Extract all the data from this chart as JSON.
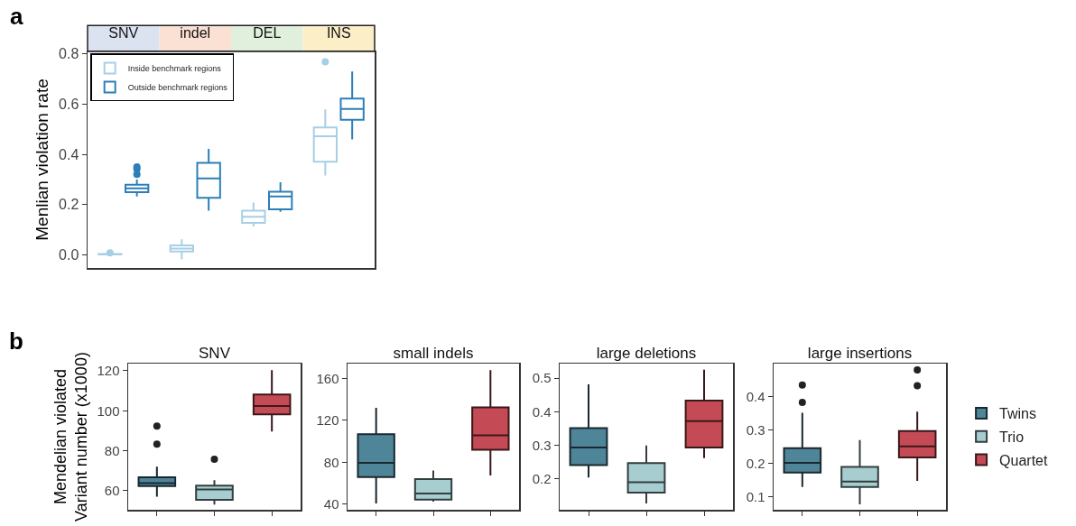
{
  "chart_data": [
    {
      "type": "box",
      "ylabel": "Menlian violation rate",
      "annotations": [
        "a"
      ],
      "categories": [
        "SNV",
        "indel",
        "DEL",
        "INS"
      ],
      "ylim": [
        -0.053,
        0.81
      ],
      "yticks": [
        {
          "value": 0,
          "label": "0.0"
        },
        0.2,
        0.4,
        0.6,
        0.8
      ],
      "grid": false,
      "legend": "top left",
      "series": [
        {
          "name": "Inside benchmark regions",
          "color": "#a6cfe5",
          "boxes": [
            {
              "low": 0,
              "q1": 0.001,
              "median": 0.002,
              "q3": 0.003,
              "high": 0.004,
              "outliers": [
                0.007
              ]
            },
            {
              "low": -0.019,
              "q1": 0.013,
              "median": 0.024,
              "q3": 0.037,
              "high": 0.061
            },
            {
              "low": 0.112,
              "q1": 0.127,
              "median": 0.151,
              "q3": 0.175,
              "high": 0.208
            },
            {
              "low": 0.316,
              "q1": 0.37,
              "median": 0.472,
              "q3": 0.507,
              "high": 0.579,
              "outliers": [
                0.769
              ]
            }
          ]
        },
        {
          "name": "Outside benchmark regions",
          "color": "#2c7fb8",
          "boxes": [
            {
              "low": 0.232,
              "q1": 0.249,
              "median": 0.264,
              "q3": 0.279,
              "high": 0.299,
              "outliers": [
                0.32,
                0.342,
                0.35
              ]
            },
            {
              "low": 0.175,
              "q1": 0.227,
              "median": 0.304,
              "q3": 0.366,
              "high": 0.422
            },
            {
              "low": 0.171,
              "q1": 0.181,
              "median": 0.232,
              "q3": 0.251,
              "high": 0.289
            },
            {
              "low": 0.459,
              "q1": 0.538,
              "median": 0.581,
              "q3": 0.622,
              "high": 0.73
            }
          ]
        }
      ]
    },
    {
      "type": "box",
      "title": "SNV",
      "ylabel": "Mendelian violated\nVariant number (x1000)",
      "annotations": [
        "b"
      ],
      "categories": [
        null,
        null,
        null
      ],
      "ylim": [
        50.5,
        123.6
      ],
      "yticks": [
        60,
        80,
        100,
        120
      ],
      "grid": false,
      "tick_labels": "y",
      "series": [
        {
          "color": "#4f8599",
          "boxes": [
            {
              "low": 57,
              "q1": 62.3,
              "median": 63.8,
              "q3": 66.8,
              "high": 72,
              "outliers": [
                83.3,
                92.3
              ]
            },
            null,
            null
          ]
        },
        {
          "color": "#a8cdd1",
          "boxes": [
            null,
            {
              "low": 53.1,
              "q1": 55.5,
              "median": 60.6,
              "q3": 62.6,
              "high": 65.3,
              "outliers": [
                75.8
              ]
            },
            null
          ]
        },
        {
          "color": "#c44b55",
          "boxes": [
            null,
            null,
            {
              "low": 89.6,
              "q1": 98.2,
              "median": 102.4,
              "q3": 108.1,
              "high": 120.3
            }
          ]
        }
      ]
    },
    {
      "type": "box",
      "title": "small indels",
      "categories": [
        null,
        null,
        null
      ],
      "ylim": [
        34.6,
        174.2
      ],
      "yticks": [
        40,
        80,
        120,
        160
      ],
      "grid": false,
      "tick_labels": "y",
      "series": [
        {
          "color": "#4f8599",
          "boxes": [
            {
              "low": 40.6,
              "q1": 65.9,
              "median": 79.5,
              "q3": 106.8,
              "high": 132
            },
            null,
            null
          ]
        },
        {
          "color": "#a8cdd1",
          "boxes": [
            null,
            {
              "low": 42.3,
              "q1": 44.3,
              "median": 50.2,
              "q3": 63.9,
              "high": 72
            },
            null
          ]
        },
        {
          "color": "#c44b55",
          "boxes": [
            null,
            null,
            {
              "low": 67.3,
              "q1": 92,
              "median": 105.6,
              "q3": 132.5,
              "high": 168
            }
          ]
        }
      ]
    },
    {
      "type": "box",
      "title": "large deletions",
      "categories": [
        null,
        null,
        null
      ],
      "ylim": [
        0.108,
        0.543
      ],
      "yticks": [
        0.2,
        0.3,
        0.4,
        0.5
      ],
      "grid": false,
      "tick_labels": "y",
      "series": [
        {
          "color": "#4f8599",
          "boxes": [
            {
              "low": 0.204,
              "q1": 0.241,
              "median": 0.293,
              "q3": 0.351,
              "high": 0.481
            },
            null,
            null
          ]
        },
        {
          "color": "#a8cdd1",
          "boxes": [
            null,
            {
              "low": 0.127,
              "q1": 0.159,
              "median": 0.19,
              "q3": 0.247,
              "high": 0.299
            },
            null
          ]
        },
        {
          "color": "#c44b55",
          "boxes": [
            null,
            null,
            {
              "low": 0.262,
              "q1": 0.293,
              "median": 0.372,
              "q3": 0.433,
              "high": 0.525
            }
          ]
        }
      ]
    },
    {
      "type": "box",
      "title": "large insertions",
      "categories": [
        null,
        null,
        null
      ],
      "ylim": [
        0.062,
        0.498
      ],
      "yticks": [
        0.1,
        0.2,
        0.3,
        0.4
      ],
      "grid": false,
      "tick_labels": "y",
      "legend": "right",
      "series": [
        {
          "name": "Twins",
          "color": "#4f8599",
          "boxes": [
            {
              "low": 0.13,
              "q1": 0.173,
              "median": 0.202,
              "q3": 0.246,
              "high": 0.351,
              "outliers": [
                0.382,
                0.434
              ]
            },
            null,
            null
          ]
        },
        {
          "name": "Trio",
          "color": "#a8cdd1",
          "boxes": [
            null,
            {
              "low": 0.078,
              "q1": 0.13,
              "median": 0.146,
              "q3": 0.19,
              "high": 0.27
            },
            null
          ]
        },
        {
          "name": "Quartet",
          "color": "#c44b55",
          "boxes": [
            null,
            null,
            {
              "low": 0.148,
              "q1": 0.218,
              "median": 0.251,
              "q3": 0.297,
              "high": 0.355,
              "outliers": [
                0.432,
                0.479
              ]
            }
          ]
        }
      ]
    }
  ]
}
